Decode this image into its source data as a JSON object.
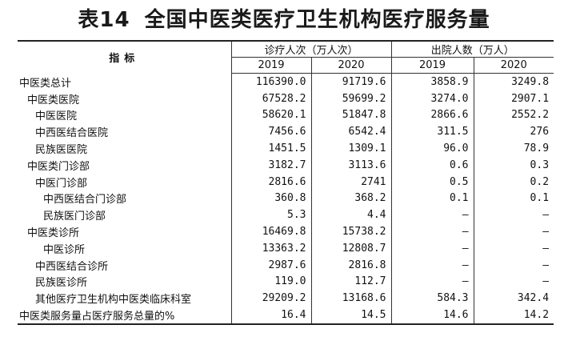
{
  "title": {
    "number": "表14",
    "text": "全国中医类医疗卫生机构医疗服务量"
  },
  "header": {
    "indicator": "指标",
    "group1": "诊疗人次（万人次）",
    "group2": "出院人数（万人）",
    "years": [
      "2019",
      "2020",
      "2019",
      "2020"
    ]
  },
  "rows": [
    {
      "name": "中医类总计",
      "level": 0,
      "values": [
        "116390.0",
        "91719.6",
        "3858.9",
        "3249.8"
      ]
    },
    {
      "name": "中医类医院",
      "level": 1,
      "values": [
        "67528.2",
        "59699.2",
        "3274.0",
        "2907.1"
      ]
    },
    {
      "name": "中医医院",
      "level": 2,
      "values": [
        "58620.1",
        "51847.8",
        "2866.6",
        "2552.2"
      ]
    },
    {
      "name": "中西医结合医院",
      "level": 2,
      "values": [
        "7456.6",
        "6542.4",
        "311.5",
        "276"
      ]
    },
    {
      "name": "民族医医院",
      "level": 2,
      "values": [
        "1451.5",
        "1309.1",
        "96.0",
        "78.9"
      ]
    },
    {
      "name": "中医类门诊部",
      "level": 1,
      "values": [
        "3182.7",
        "3113.6",
        "0.6",
        "0.3"
      ]
    },
    {
      "name": "中医门诊部",
      "level": 2,
      "values": [
        "2816.6",
        "2741",
        "0.5",
        "0.2"
      ]
    },
    {
      "name": "中西医结合门诊部",
      "level": 3,
      "values": [
        "360.8",
        "368.2",
        "0.1",
        "0.1"
      ]
    },
    {
      "name": "民族医门诊部",
      "level": 3,
      "values": [
        "5.3",
        "4.4",
        "–",
        "–"
      ]
    },
    {
      "name": "中医类诊所",
      "level": 1,
      "values": [
        "16469.8",
        "15738.2",
        "–",
        "–"
      ]
    },
    {
      "name": "中医诊所",
      "level": 3,
      "values": [
        "13363.2",
        "12808.7",
        "–",
        "–"
      ]
    },
    {
      "name": "中西医结合诊所",
      "level": 2,
      "values": [
        "2987.6",
        "2816.8",
        "–",
        "–"
      ]
    },
    {
      "name": "民族医诊所",
      "level": 2,
      "values": [
        "119.0",
        "112.7",
        "–",
        "–"
      ]
    },
    {
      "name": "其他医疗卫生机构中医类临床科室",
      "level": 2,
      "values": [
        "29209.2",
        "13168.6",
        "584.3",
        "342.4"
      ]
    },
    {
      "name": "中医类服务量占医疗服务总量的%",
      "level": 0,
      "values": [
        "16.4",
        "14.5",
        "14.6",
        "14.2"
      ]
    }
  ]
}
